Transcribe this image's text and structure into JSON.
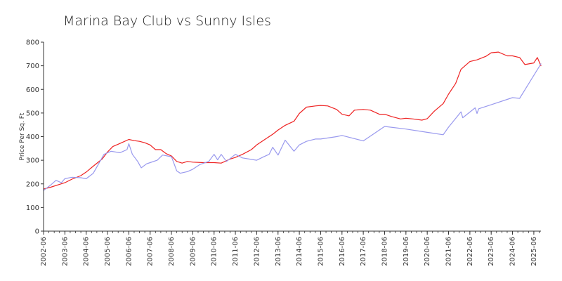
{
  "chart_data": {
    "type": "line",
    "title": "Marina Bay Club vs Sunny Isles",
    "xlabel": "",
    "ylabel": "Price Per Sq. Ft",
    "ylim": [
      0,
      800
    ],
    "yticks": [
      "0",
      "100",
      "200",
      "300",
      "400",
      "500",
      "600",
      "700",
      "800"
    ],
    "xticks": [
      "2002-06",
      "2003-06",
      "2004-06",
      "2005-06",
      "2006-06",
      "2007-06",
      "2008-06",
      "2009-06",
      "2010-06",
      "2011-06",
      "2012-06",
      "2013-06",
      "2014-06",
      "2015-06",
      "2016-06",
      "2017-06",
      "2018-06",
      "2019-06",
      "2020-06",
      "2021-06",
      "2022-06",
      "2023-06",
      "2024-06",
      "2025-06"
    ],
    "xrange": [
      "2002-06",
      "2025-10"
    ],
    "grid": false,
    "legend": "none",
    "colors": {
      "series_red": "#ee2222",
      "series_blue": "#9999ee",
      "axis": "#333333"
    },
    "series": [
      {
        "color": "#ee2222",
        "points": [
          [
            "2002-06",
            178
          ],
          [
            "2002-10",
            186
          ],
          [
            "2003-03",
            198
          ],
          [
            "2003-06",
            205
          ],
          [
            "2003-10",
            220
          ],
          [
            "2004-03",
            235
          ],
          [
            "2004-06",
            250
          ],
          [
            "2004-10",
            275
          ],
          [
            "2005-03",
            305
          ],
          [
            "2005-06",
            335
          ],
          [
            "2005-09",
            358
          ],
          [
            "2005-12",
            368
          ],
          [
            "2006-03",
            378
          ],
          [
            "2006-06",
            388
          ],
          [
            "2006-09",
            383
          ],
          [
            "2006-12",
            380
          ],
          [
            "2007-03",
            374
          ],
          [
            "2007-06",
            365
          ],
          [
            "2007-09",
            345
          ],
          [
            "2007-12",
            345
          ],
          [
            "2008-03",
            328
          ],
          [
            "2008-06",
            318
          ],
          [
            "2008-09",
            295
          ],
          [
            "2008-12",
            288
          ],
          [
            "2009-03",
            295
          ],
          [
            "2009-06",
            292
          ],
          [
            "2009-12",
            290
          ],
          [
            "2010-06",
            290
          ],
          [
            "2010-10",
            288
          ],
          [
            "2011-03",
            305
          ],
          [
            "2011-06",
            312
          ],
          [
            "2011-10",
            325
          ],
          [
            "2012-03",
            345
          ],
          [
            "2012-06",
            365
          ],
          [
            "2012-10",
            385
          ],
          [
            "2013-03",
            410
          ],
          [
            "2013-06",
            428
          ],
          [
            "2013-10",
            448
          ],
          [
            "2014-03",
            465
          ],
          [
            "2014-06",
            498
          ],
          [
            "2014-10",
            525
          ],
          [
            "2015-03",
            530
          ],
          [
            "2015-06",
            532
          ],
          [
            "2015-10",
            530
          ],
          [
            "2016-03",
            515
          ],
          [
            "2016-06",
            495
          ],
          [
            "2016-10",
            488
          ],
          [
            "2017-01",
            512
          ],
          [
            "2017-06",
            515
          ],
          [
            "2017-10",
            512
          ],
          [
            "2018-03",
            495
          ],
          [
            "2018-06",
            495
          ],
          [
            "2018-10",
            485
          ],
          [
            "2019-03",
            475
          ],
          [
            "2019-06",
            478
          ],
          [
            "2019-10",
            475
          ],
          [
            "2020-03",
            470
          ],
          [
            "2020-06",
            476
          ],
          [
            "2020-10",
            508
          ],
          [
            "2021-03",
            540
          ],
          [
            "2021-06",
            580
          ],
          [
            "2021-10",
            625
          ],
          [
            "2022-01",
            685
          ],
          [
            "2022-06",
            718
          ],
          [
            "2022-10",
            725
          ],
          [
            "2023-03",
            740
          ],
          [
            "2023-06",
            755
          ],
          [
            "2023-10",
            758
          ],
          [
            "2024-03",
            742
          ],
          [
            "2024-06",
            742
          ],
          [
            "2024-10",
            735
          ],
          [
            "2025-01",
            705
          ],
          [
            "2025-06",
            712
          ],
          [
            "2025-08",
            735
          ],
          [
            "2025-10",
            700
          ]
        ]
      },
      {
        "color": "#9999ee",
        "points": [
          [
            "2002-06",
            172
          ],
          [
            "2002-10",
            195
          ],
          [
            "2003-01",
            215
          ],
          [
            "2003-04",
            205
          ],
          [
            "2003-06",
            222
          ],
          [
            "2003-10",
            228
          ],
          [
            "2004-03",
            226
          ],
          [
            "2004-06",
            222
          ],
          [
            "2004-10",
            245
          ],
          [
            "2005-01",
            285
          ],
          [
            "2005-04",
            325
          ],
          [
            "2005-08",
            338
          ],
          [
            "2006-01",
            332
          ],
          [
            "2006-05",
            345
          ],
          [
            "2006-06",
            370
          ],
          [
            "2006-08",
            325
          ],
          [
            "2006-11",
            295
          ],
          [
            "2007-01",
            268
          ],
          [
            "2007-04",
            285
          ],
          [
            "2007-06",
            290
          ],
          [
            "2007-10",
            300
          ],
          [
            "2008-01",
            322
          ],
          [
            "2008-06",
            315
          ],
          [
            "2008-09",
            255
          ],
          [
            "2008-11",
            245
          ],
          [
            "2009-03",
            252
          ],
          [
            "2009-06",
            262
          ],
          [
            "2009-10",
            282
          ],
          [
            "2010-03",
            295
          ],
          [
            "2010-06",
            325
          ],
          [
            "2010-08",
            302
          ],
          [
            "2010-10",
            325
          ],
          [
            "2011-01",
            295
          ],
          [
            "2011-06",
            325
          ],
          [
            "2011-10",
            310
          ],
          [
            "2012-06",
            300
          ],
          [
            "2012-10",
            315
          ],
          [
            "2013-01",
            325
          ],
          [
            "2013-03",
            355
          ],
          [
            "2013-06",
            322
          ],
          [
            "2013-10",
            385
          ],
          [
            "2014-03",
            338
          ],
          [
            "2014-06",
            365
          ],
          [
            "2014-10",
            380
          ],
          [
            "2015-03",
            390
          ],
          [
            "2015-06",
            390
          ],
          [
            "2016-03",
            400
          ],
          [
            "2016-06",
            405
          ],
          [
            "2017-06",
            382
          ],
          [
            "2018-06",
            443
          ],
          [
            "2019-06",
            432
          ],
          [
            "2020-06",
            418
          ],
          [
            "2021-03",
            408
          ],
          [
            "2021-06",
            440
          ],
          [
            "2022-01",
            505
          ],
          [
            "2022-02",
            480
          ],
          [
            "2022-09",
            522
          ],
          [
            "2022-10",
            498
          ],
          [
            "2022-11",
            518
          ],
          [
            "2023-06",
            535
          ],
          [
            "2024-06",
            565
          ],
          [
            "2024-10",
            562
          ],
          [
            "2025-10",
            708
          ]
        ]
      }
    ]
  }
}
